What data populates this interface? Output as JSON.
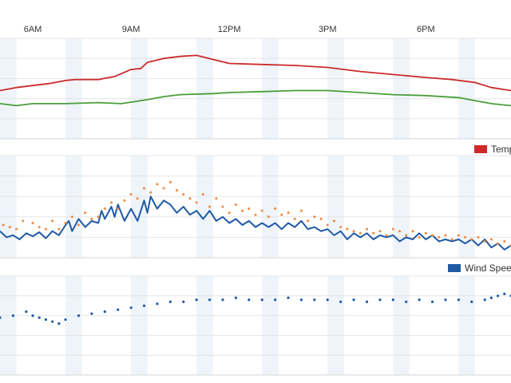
{
  "chart_data": [
    {
      "type": "line",
      "x_ticks": [
        {
          "label": "6AM",
          "x": 6
        },
        {
          "label": "9AM",
          "x": 9
        },
        {
          "label": "12PM",
          "x": 12
        },
        {
          "label": "3PM",
          "x": 15
        },
        {
          "label": "6PM",
          "x": 18
        }
      ],
      "xlim": [
        5,
        20.6
      ],
      "ylim": [
        0,
        10
      ],
      "grid": true,
      "series": [
        {
          "color": "#cc2a2a",
          "points": [
            [
              5.0,
              4.8
            ],
            [
              5.5,
              5.1
            ],
            [
              6.0,
              5.3
            ],
            [
              6.5,
              5.5
            ],
            [
              7.0,
              5.8
            ],
            [
              7.3,
              5.9
            ],
            [
              8.0,
              5.9
            ],
            [
              8.5,
              6.2
            ],
            [
              9.0,
              6.9
            ],
            [
              9.3,
              7.0
            ],
            [
              9.5,
              7.6
            ],
            [
              10.0,
              8.0
            ],
            [
              10.5,
              8.2
            ],
            [
              11.0,
              8.3
            ],
            [
              11.5,
              7.9
            ],
            [
              12.0,
              7.5
            ],
            [
              13.0,
              7.4
            ],
            [
              14.0,
              7.3
            ],
            [
              15.0,
              7.1
            ],
            [
              16.0,
              6.7
            ],
            [
              17.0,
              6.4
            ],
            [
              18.0,
              6.1
            ],
            [
              18.8,
              5.9
            ],
            [
              19.5,
              5.6
            ],
            [
              20.0,
              5.1
            ],
            [
              20.6,
              4.8
            ]
          ]
        },
        {
          "color": "#4a9e3b",
          "points": [
            [
              5.0,
              3.5
            ],
            [
              5.5,
              3.3
            ],
            [
              6.0,
              3.5
            ],
            [
              7.0,
              3.5
            ],
            [
              8.0,
              3.6
            ],
            [
              8.7,
              3.5
            ],
            [
              9.5,
              3.9
            ],
            [
              10.0,
              4.2
            ],
            [
              10.5,
              4.4
            ],
            [
              11.5,
              4.5
            ],
            [
              12.0,
              4.6
            ],
            [
              13.0,
              4.7
            ],
            [
              14.0,
              4.8
            ],
            [
              15.0,
              4.8
            ],
            [
              16.0,
              4.6
            ],
            [
              17.0,
              4.4
            ],
            [
              18.0,
              4.3
            ],
            [
              19.0,
              4.1
            ],
            [
              19.5,
              3.8
            ],
            [
              20.0,
              3.5
            ],
            [
              20.6,
              3.3
            ]
          ]
        }
      ],
      "legend": {
        "label": "Temp",
        "color": "#cc2a2a",
        "position": "bottom-right"
      }
    },
    {
      "type": "scatter+line",
      "xlim": [
        5,
        20.6
      ],
      "ylim": [
        0,
        10
      ],
      "grid": true,
      "series": [
        {
          "kind": "line",
          "color": "#1f5aa6",
          "points": [
            [
              5.0,
              2.6
            ],
            [
              5.2,
              2.0
            ],
            [
              5.4,
              2.2
            ],
            [
              5.6,
              1.8
            ],
            [
              5.8,
              2.4
            ],
            [
              6.0,
              2.1
            ],
            [
              6.2,
              2.5
            ],
            [
              6.4,
              1.9
            ],
            [
              6.6,
              2.6
            ],
            [
              6.8,
              2.2
            ],
            [
              7.0,
              3.2
            ],
            [
              7.1,
              3.6
            ],
            [
              7.2,
              2.6
            ],
            [
              7.4,
              3.8
            ],
            [
              7.6,
              3.0
            ],
            [
              7.8,
              3.6
            ],
            [
              8.0,
              3.4
            ],
            [
              8.1,
              4.6
            ],
            [
              8.2,
              3.8
            ],
            [
              8.4,
              5.0
            ],
            [
              8.5,
              4.0
            ],
            [
              8.6,
              5.2
            ],
            [
              8.8,
              3.6
            ],
            [
              9.0,
              4.8
            ],
            [
              9.2,
              3.6
            ],
            [
              9.4,
              5.6
            ],
            [
              9.5,
              4.4
            ],
            [
              9.6,
              6.0
            ],
            [
              9.8,
              4.8
            ],
            [
              10.0,
              5.6
            ],
            [
              10.2,
              5.2
            ],
            [
              10.4,
              4.4
            ],
            [
              10.6,
              5.0
            ],
            [
              10.8,
              4.2
            ],
            [
              11.0,
              4.6
            ],
            [
              11.2,
              3.8
            ],
            [
              11.4,
              4.6
            ],
            [
              11.6,
              3.6
            ],
            [
              11.8,
              4.0
            ],
            [
              12.0,
              3.4
            ],
            [
              12.2,
              3.8
            ],
            [
              12.4,
              3.2
            ],
            [
              12.6,
              3.6
            ],
            [
              12.8,
              3.0
            ],
            [
              13.0,
              3.4
            ],
            [
              13.2,
              3.0
            ],
            [
              13.4,
              3.4
            ],
            [
              13.6,
              2.8
            ],
            [
              13.8,
              3.4
            ],
            [
              14.0,
              3.0
            ],
            [
              14.2,
              3.6
            ],
            [
              14.4,
              2.8
            ],
            [
              14.6,
              3.0
            ],
            [
              14.8,
              2.6
            ],
            [
              15.0,
              2.8
            ],
            [
              15.2,
              2.2
            ],
            [
              15.4,
              2.6
            ],
            [
              15.6,
              1.8
            ],
            [
              15.8,
              2.4
            ],
            [
              16.0,
              2.0
            ],
            [
              16.2,
              2.4
            ],
            [
              16.4,
              1.8
            ],
            [
              16.6,
              2.2
            ],
            [
              16.8,
              2.0
            ],
            [
              17.0,
              2.2
            ],
            [
              17.2,
              1.6
            ],
            [
              17.4,
              2.0
            ],
            [
              17.6,
              1.8
            ],
            [
              17.8,
              2.4
            ],
            [
              18.0,
              1.8
            ],
            [
              18.2,
              2.2
            ],
            [
              18.4,
              1.6
            ],
            [
              18.6,
              1.8
            ],
            [
              18.8,
              1.6
            ],
            [
              19.0,
              1.8
            ],
            [
              19.2,
              1.4
            ],
            [
              19.4,
              1.8
            ],
            [
              19.6,
              1.2
            ],
            [
              19.8,
              1.8
            ],
            [
              20.0,
              1.0
            ],
            [
              20.2,
              1.4
            ],
            [
              20.4,
              0.8
            ],
            [
              20.6,
              1.2
            ]
          ]
        },
        {
          "kind": "scatter",
          "color": "#f0883a",
          "points": [
            [
              5.1,
              3.2
            ],
            [
              5.3,
              3.0
            ],
            [
              5.5,
              2.8
            ],
            [
              5.7,
              3.6
            ],
            [
              6.0,
              3.4
            ],
            [
              6.2,
              3.0
            ],
            [
              6.4,
              2.8
            ],
            [
              6.6,
              3.6
            ],
            [
              6.8,
              2.8
            ],
            [
              7.0,
              3.4
            ],
            [
              7.2,
              4.0
            ],
            [
              7.4,
              3.2
            ],
            [
              7.6,
              4.4
            ],
            [
              7.8,
              3.8
            ],
            [
              8.0,
              4.0
            ],
            [
              8.2,
              4.8
            ],
            [
              8.4,
              5.4
            ],
            [
              8.6,
              4.8
            ],
            [
              8.8,
              5.6
            ],
            [
              9.0,
              6.2
            ],
            [
              9.2,
              5.8
            ],
            [
              9.4,
              6.8
            ],
            [
              9.6,
              6.4
            ],
            [
              9.8,
              7.2
            ],
            [
              10.0,
              6.8
            ],
            [
              10.2,
              7.4
            ],
            [
              10.4,
              6.6
            ],
            [
              10.6,
              6.2
            ],
            [
              10.8,
              5.8
            ],
            [
              11.0,
              5.4
            ],
            [
              11.2,
              6.2
            ],
            [
              11.4,
              5.0
            ],
            [
              11.6,
              5.8
            ],
            [
              11.8,
              5.0
            ],
            [
              12.0,
              4.4
            ],
            [
              12.2,
              5.2
            ],
            [
              12.4,
              4.6
            ],
            [
              12.6,
              4.8
            ],
            [
              12.8,
              4.2
            ],
            [
              13.0,
              4.6
            ],
            [
              13.2,
              4.0
            ],
            [
              13.4,
              4.8
            ],
            [
              13.6,
              4.2
            ],
            [
              13.8,
              4.4
            ],
            [
              14.0,
              3.8
            ],
            [
              14.2,
              4.6
            ],
            [
              14.4,
              3.6
            ],
            [
              14.6,
              4.0
            ],
            [
              14.8,
              3.8
            ],
            [
              15.0,
              3.2
            ],
            [
              15.2,
              3.6
            ],
            [
              15.4,
              3.0
            ],
            [
              15.6,
              2.8
            ],
            [
              15.8,
              2.6
            ],
            [
              16.0,
              2.4
            ],
            [
              16.2,
              2.8
            ],
            [
              16.4,
              2.4
            ],
            [
              16.6,
              2.6
            ],
            [
              16.8,
              2.2
            ],
            [
              17.0,
              2.8
            ],
            [
              17.2,
              2.6
            ],
            [
              17.4,
              2.2
            ],
            [
              17.6,
              2.6
            ],
            [
              17.8,
              2.0
            ],
            [
              18.0,
              2.4
            ],
            [
              18.2,
              2.2
            ],
            [
              18.4,
              2.0
            ],
            [
              18.6,
              2.2
            ],
            [
              18.8,
              1.8
            ],
            [
              19.0,
              2.2
            ],
            [
              19.2,
              2.0
            ],
            [
              19.4,
              1.8
            ],
            [
              19.6,
              2.0
            ],
            [
              19.8,
              1.6
            ],
            [
              20.0,
              1.8
            ],
            [
              20.2,
              1.4
            ],
            [
              20.4,
              1.6
            ],
            [
              20.6,
              1.2
            ]
          ]
        }
      ],
      "legend": {
        "label": "Wind Spee",
        "color": "#1f5aa6",
        "position": "bottom-right"
      }
    },
    {
      "type": "scatter",
      "xlim": [
        5,
        20.6
      ],
      "ylim": [
        0,
        10
      ],
      "grid": true,
      "series": [
        {
          "color": "#1f5aa6",
          "points": [
            [
              5.0,
              5.8
            ],
            [
              5.4,
              6.0
            ],
            [
              5.8,
              6.4
            ],
            [
              6.0,
              6.0
            ],
            [
              6.2,
              5.8
            ],
            [
              6.4,
              5.6
            ],
            [
              6.6,
              5.4
            ],
            [
              6.8,
              5.2
            ],
            [
              7.0,
              5.6
            ],
            [
              7.4,
              6.0
            ],
            [
              7.8,
              6.2
            ],
            [
              8.2,
              6.4
            ],
            [
              8.6,
              6.6
            ],
            [
              9.0,
              6.8
            ],
            [
              9.4,
              7.0
            ],
            [
              9.8,
              7.2
            ],
            [
              10.2,
              7.4
            ],
            [
              10.6,
              7.4
            ],
            [
              11.0,
              7.6
            ],
            [
              11.4,
              7.6
            ],
            [
              11.8,
              7.6
            ],
            [
              12.2,
              7.8
            ],
            [
              12.6,
              7.6
            ],
            [
              13.0,
              7.6
            ],
            [
              13.4,
              7.6
            ],
            [
              13.8,
              7.8
            ],
            [
              14.2,
              7.6
            ],
            [
              14.6,
              7.6
            ],
            [
              15.0,
              7.6
            ],
            [
              15.4,
              7.4
            ],
            [
              15.8,
              7.6
            ],
            [
              16.2,
              7.4
            ],
            [
              16.6,
              7.6
            ],
            [
              17.0,
              7.6
            ],
            [
              17.4,
              7.4
            ],
            [
              17.8,
              7.6
            ],
            [
              18.2,
              7.4
            ],
            [
              18.6,
              7.6
            ],
            [
              19.0,
              7.6
            ],
            [
              19.4,
              7.4
            ],
            [
              19.8,
              7.6
            ],
            [
              20.0,
              7.8
            ],
            [
              20.2,
              8.0
            ],
            [
              20.4,
              8.2
            ],
            [
              20.6,
              8.0
            ]
          ]
        }
      ],
      "legend": null
    }
  ]
}
